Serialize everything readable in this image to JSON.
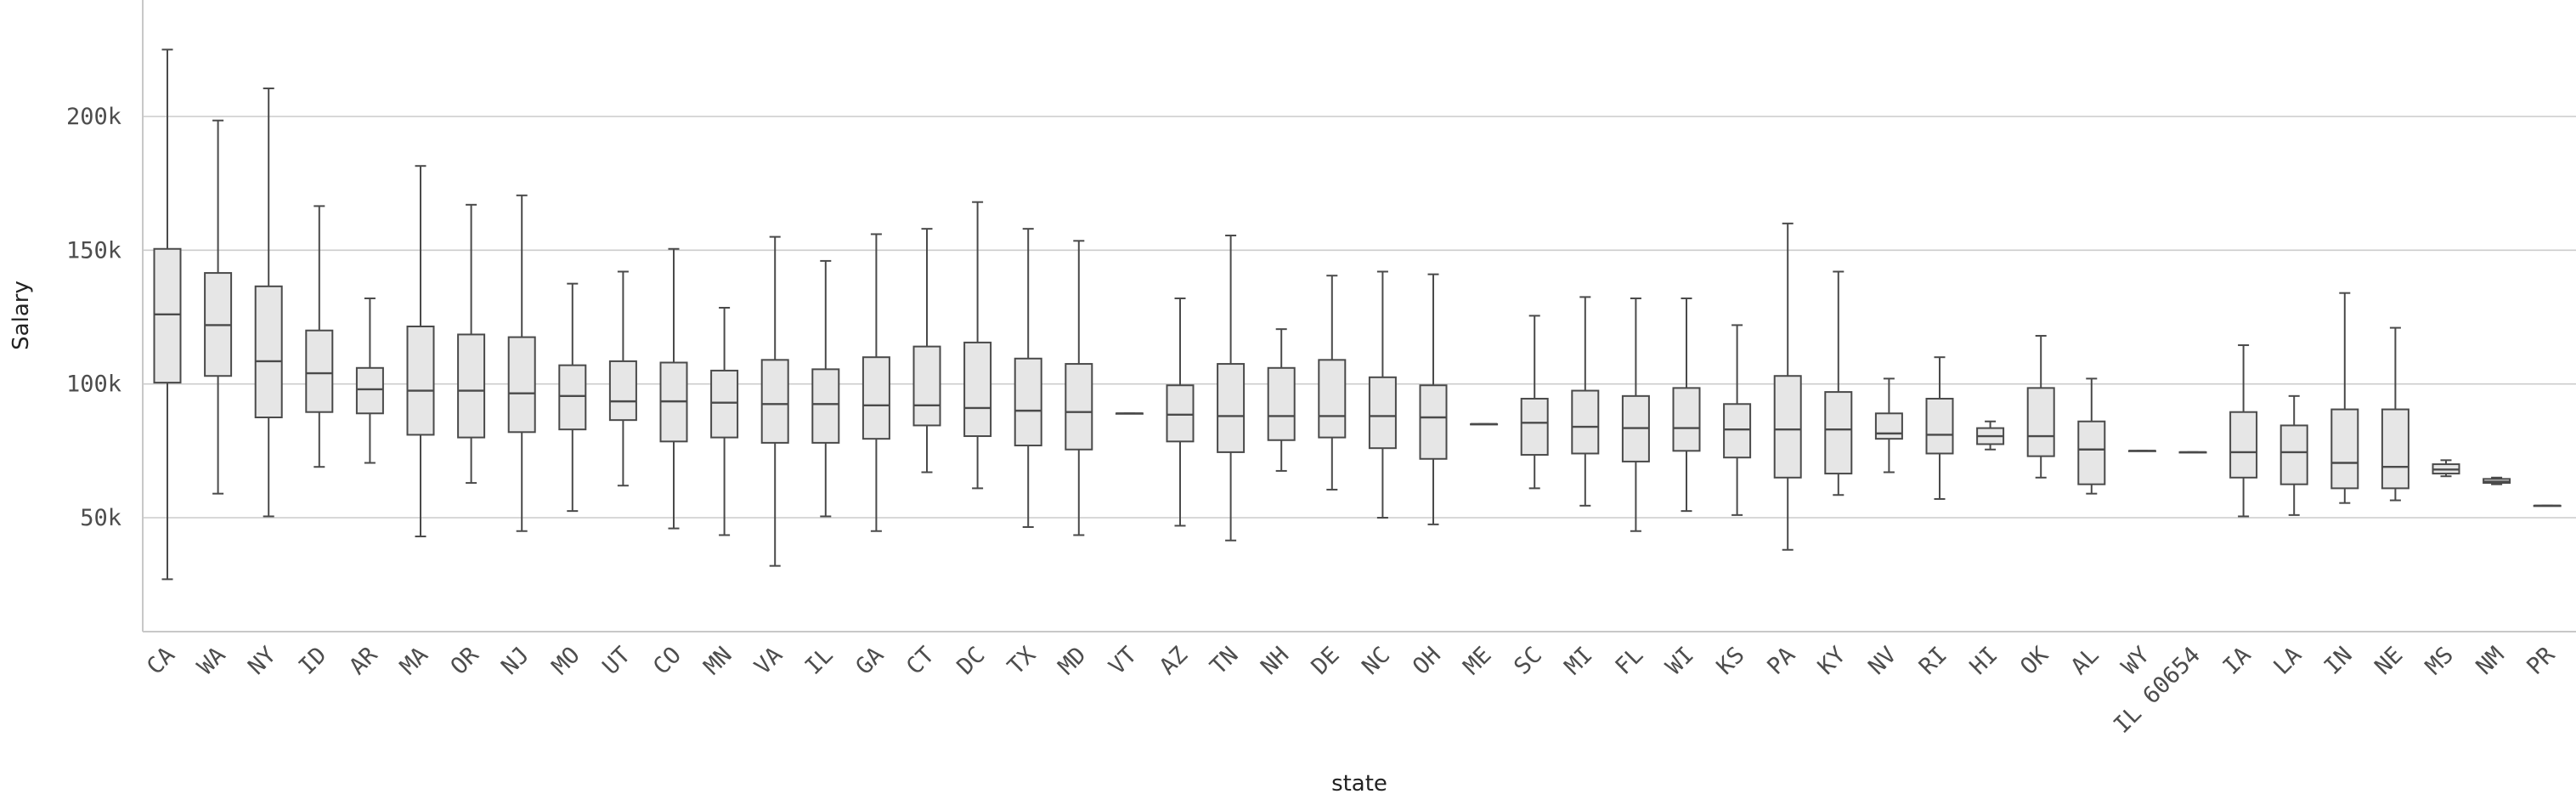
{
  "chart_data": {
    "type": "box",
    "xlabel": "state",
    "ylabel": "Salary",
    "ylim": [
      0,
      235000
    ],
    "yticks": [
      {
        "value": 50000,
        "label": "50k"
      },
      {
        "value": 100000,
        "label": "100k"
      },
      {
        "value": 150000,
        "label": "150k"
      },
      {
        "value": 200000,
        "label": "200k"
      }
    ],
    "grid": true,
    "categories": [
      "CA",
      "WA",
      "NY",
      "ID",
      "AR",
      "MA",
      "OR",
      "NJ",
      "MO",
      "UT",
      "CO",
      "MN",
      "VA",
      "IL",
      "GA",
      "CT",
      "DC",
      "TX",
      "MD",
      "VT",
      "AZ",
      "TN",
      "NH",
      "DE",
      "NC",
      "OH",
      "ME",
      "SC",
      "MI",
      "FL",
      "WI",
      "KS",
      "PA",
      "KY",
      "NV",
      "RI",
      "HI",
      "OK",
      "AL",
      "WY",
      "IL 60654",
      "IA",
      "LA",
      "IN",
      "NE",
      "MS",
      "NM",
      "PR"
    ],
    "boxes": [
      {
        "min": 27000,
        "q1": 100500,
        "median": 126000,
        "q3": 150500,
        "max": 225000
      },
      {
        "min": 59000,
        "q1": 103000,
        "median": 122000,
        "q3": 141500,
        "max": 198500
      },
      {
        "min": 50500,
        "q1": 87500,
        "median": 108500,
        "q3": 136500,
        "max": 210500
      },
      {
        "min": 69000,
        "q1": 89500,
        "median": 104000,
        "q3": 120000,
        "max": 166500
      },
      {
        "min": 70500,
        "q1": 89000,
        "median": 98000,
        "q3": 106000,
        "max": 132000
      },
      {
        "min": 43000,
        "q1": 81000,
        "median": 97500,
        "q3": 121500,
        "max": 181500
      },
      {
        "min": 63000,
        "q1": 80000,
        "median": 97500,
        "q3": 118500,
        "max": 167000
      },
      {
        "min": 45000,
        "q1": 82000,
        "median": 96500,
        "q3": 117500,
        "max": 170500
      },
      {
        "min": 52500,
        "q1": 83000,
        "median": 95500,
        "q3": 107000,
        "max": 137500
      },
      {
        "min": 62000,
        "q1": 86500,
        "median": 93500,
        "q3": 108500,
        "max": 142000
      },
      {
        "min": 46000,
        "q1": 78500,
        "median": 93500,
        "q3": 108000,
        "max": 150500
      },
      {
        "min": 43500,
        "q1": 80000,
        "median": 93000,
        "q3": 105000,
        "max": 128500
      },
      {
        "min": 32000,
        "q1": 78000,
        "median": 92500,
        "q3": 109000,
        "max": 155000
      },
      {
        "min": 50500,
        "q1": 78000,
        "median": 92500,
        "q3": 105500,
        "max": 146000
      },
      {
        "min": 45000,
        "q1": 79500,
        "median": 92000,
        "q3": 110000,
        "max": 156000
      },
      {
        "min": 67000,
        "q1": 84500,
        "median": 92000,
        "q3": 114000,
        "max": 158000
      },
      {
        "min": 61000,
        "q1": 80500,
        "median": 91000,
        "q3": 115500,
        "max": 168000
      },
      {
        "min": 46500,
        "q1": 77000,
        "median": 90000,
        "q3": 109500,
        "max": 158000
      },
      {
        "min": 43500,
        "q1": 75500,
        "median": 89500,
        "q3": 107500,
        "max": 153500
      },
      {
        "min": 89000,
        "q1": 89000,
        "median": 89000,
        "q3": 89000,
        "max": 89000
      },
      {
        "min": 47000,
        "q1": 78500,
        "median": 88500,
        "q3": 99500,
        "max": 132000
      },
      {
        "min": 41500,
        "q1": 74500,
        "median": 88000,
        "q3": 107500,
        "max": 155500
      },
      {
        "min": 67500,
        "q1": 79000,
        "median": 88000,
        "q3": 106000,
        "max": 120500
      },
      {
        "min": 60500,
        "q1": 80000,
        "median": 88000,
        "q3": 109000,
        "max": 140500
      },
      {
        "min": 50000,
        "q1": 76000,
        "median": 88000,
        "q3": 102500,
        "max": 142000
      },
      {
        "min": 47500,
        "q1": 72000,
        "median": 87500,
        "q3": 99500,
        "max": 141000
      },
      {
        "min": 85000,
        "q1": 85000,
        "median": 85000,
        "q3": 85000,
        "max": 85000
      },
      {
        "min": 61000,
        "q1": 73500,
        "median": 85500,
        "q3": 94500,
        "max": 125500
      },
      {
        "min": 54500,
        "q1": 74000,
        "median": 84000,
        "q3": 97500,
        "max": 132500
      },
      {
        "min": 45000,
        "q1": 71000,
        "median": 83500,
        "q3": 95500,
        "max": 132000
      },
      {
        "min": 52500,
        "q1": 75000,
        "median": 83500,
        "q3": 98500,
        "max": 132000
      },
      {
        "min": 51000,
        "q1": 72500,
        "median": 83000,
        "q3": 92500,
        "max": 122000
      },
      {
        "min": 38000,
        "q1": 65000,
        "median": 83000,
        "q3": 103000,
        "max": 160000
      },
      {
        "min": 58500,
        "q1": 66500,
        "median": 83000,
        "q3": 97000,
        "max": 142000
      },
      {
        "min": 67000,
        "q1": 79500,
        "median": 81500,
        "q3": 89000,
        "max": 102000
      },
      {
        "min": 57000,
        "q1": 74000,
        "median": 81000,
        "q3": 94500,
        "max": 110000
      },
      {
        "min": 75500,
        "q1": 77500,
        "median": 80500,
        "q3": 83500,
        "max": 86000
      },
      {
        "min": 65000,
        "q1": 73000,
        "median": 80500,
        "q3": 98500,
        "max": 118000
      },
      {
        "min": 59000,
        "q1": 62500,
        "median": 75500,
        "q3": 86000,
        "max": 102000
      },
      {
        "min": 75000,
        "q1": 75000,
        "median": 75000,
        "q3": 75000,
        "max": 75000
      },
      {
        "min": 74500,
        "q1": 74500,
        "median": 74500,
        "q3": 74500,
        "max": 74500
      },
      {
        "min": 50500,
        "q1": 65000,
        "median": 74500,
        "q3": 89500,
        "max": 114500
      },
      {
        "min": 51000,
        "q1": 62500,
        "median": 74500,
        "q3": 84500,
        "max": 95500
      },
      {
        "min": 55500,
        "q1": 61000,
        "median": 70500,
        "q3": 90500,
        "max": 134000
      },
      {
        "min": 56500,
        "q1": 61000,
        "median": 69000,
        "q3": 90500,
        "max": 121000
      },
      {
        "min": 65500,
        "q1": 66500,
        "median": 68000,
        "q3": 70000,
        "max": 71500
      },
      {
        "min": 62500,
        "q1": 63000,
        "median": 63500,
        "q3": 64500,
        "max": 65000
      },
      {
        "min": 54500,
        "q1": 54500,
        "median": 54500,
        "q3": 54500,
        "max": 54500
      }
    ]
  }
}
